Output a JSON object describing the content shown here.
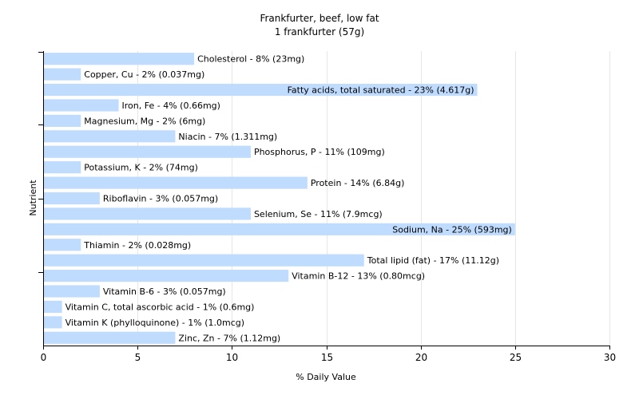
{
  "chart_data": {
    "type": "bar",
    "orientation": "horizontal",
    "title": "Frankfurter, beef, low fat",
    "subtitle": "1 frankfurter (57g)",
    "xlabel": "% Daily Value",
    "ylabel": "Nutrient",
    "xlim": [
      0,
      30
    ],
    "xticks": [
      0,
      5,
      10,
      15,
      20,
      25,
      30
    ],
    "grid": true,
    "bar_color": "#bfdcff",
    "categories": [
      "Cholesterol",
      "Copper, Cu",
      "Fatty acids, total saturated",
      "Iron, Fe",
      "Magnesium, Mg",
      "Niacin",
      "Phosphorus, P",
      "Potassium, K",
      "Protein",
      "Riboflavin",
      "Selenium, Se",
      "Sodium, Na",
      "Thiamin",
      "Total lipid (fat)",
      "Vitamin B-12",
      "Vitamin B-6",
      "Vitamin C, total ascorbic acid",
      "Vitamin K (phylloquinone)",
      "Zinc, Zn"
    ],
    "values": [
      8,
      2,
      23,
      4,
      2,
      7,
      11,
      2,
      14,
      3,
      11,
      25,
      2,
      17,
      13,
      3,
      1,
      1,
      7
    ],
    "labels": [
      "Cholesterol - 8% (23mg)",
      "Copper, Cu - 2% (0.037mg)",
      "Fatty acids, total saturated - 23% (4.617g)",
      "Iron, Fe - 4% (0.66mg)",
      "Magnesium, Mg - 2% (6mg)",
      "Niacin - 7% (1.311mg)",
      "Phosphorus, P - 11% (109mg)",
      "Potassium, K - 2% (74mg)",
      "Protein - 14% (6.84g)",
      "Riboflavin - 3% (0.057mg)",
      "Selenium, Se - 11% (7.9mcg)",
      "Sodium, Na - 25% (593mg)",
      "Thiamin - 2% (0.028mg)",
      "Total lipid (fat) - 17% (11.12g)",
      "Vitamin B-12 - 13% (0.80mcg)",
      "Vitamin B-6 - 3% (0.057mg)",
      "Vitamin C, total ascorbic acid - 1% (0.6mg)",
      "Vitamin K (phylloquinone) - 1% (1.0mcg)",
      "Zinc, Zn - 7% (1.12mg)"
    ]
  }
}
